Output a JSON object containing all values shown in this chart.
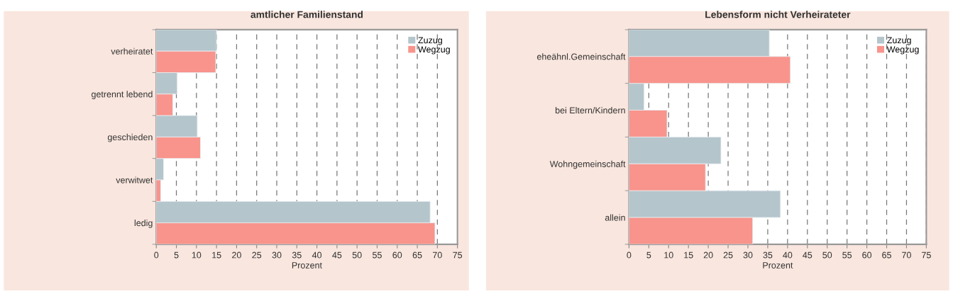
{
  "chart_data": [
    {
      "type": "bar",
      "orientation": "horizontal",
      "title": "amtlicher Familienstand",
      "xlabel": "Prozent",
      "categories": [
        "verheiratet",
        "getrennt lebend",
        "geschieden",
        "verwitwet",
        "ledig"
      ],
      "series": [
        {
          "name": "Zuzug",
          "color": "#b5c5cc",
          "values": [
            15.0,
            5.2,
            10.2,
            1.8,
            68.2
          ]
        },
        {
          "name": "Wegzug",
          "color": "#f8948c",
          "values": [
            14.8,
            4.1,
            11.0,
            1.1,
            69.4
          ]
        }
      ],
      "xlim": [
        0,
        75
      ],
      "xticks": [
        0,
        5,
        10,
        15,
        20,
        25,
        30,
        35,
        40,
        45,
        50,
        55,
        60,
        65,
        70,
        75
      ],
      "grid": "x",
      "legend": "top right"
    },
    {
      "type": "bar",
      "orientation": "horizontal",
      "title": "Lebensform nicht Verheirateter",
      "xlabel": "Prozent",
      "categories": [
        "eheähnl.Gemeinschaft",
        "bei Eltern/Kindern",
        "Wohngemeinschaft",
        "allein"
      ],
      "series": [
        {
          "name": "Zuzug",
          "color": "#b5c5cc",
          "values": [
            35.4,
            3.8,
            23.2,
            38.2
          ]
        },
        {
          "name": "Wegzug",
          "color": "#f8948c",
          "values": [
            40.7,
            9.6,
            19.3,
            31.2
          ]
        }
      ],
      "xlim": [
        0,
        75
      ],
      "xticks": [
        0,
        5,
        10,
        15,
        20,
        25,
        30,
        35,
        40,
        45,
        50,
        55,
        60,
        65,
        70,
        75
      ],
      "grid": "x",
      "legend": "top right"
    }
  ]
}
